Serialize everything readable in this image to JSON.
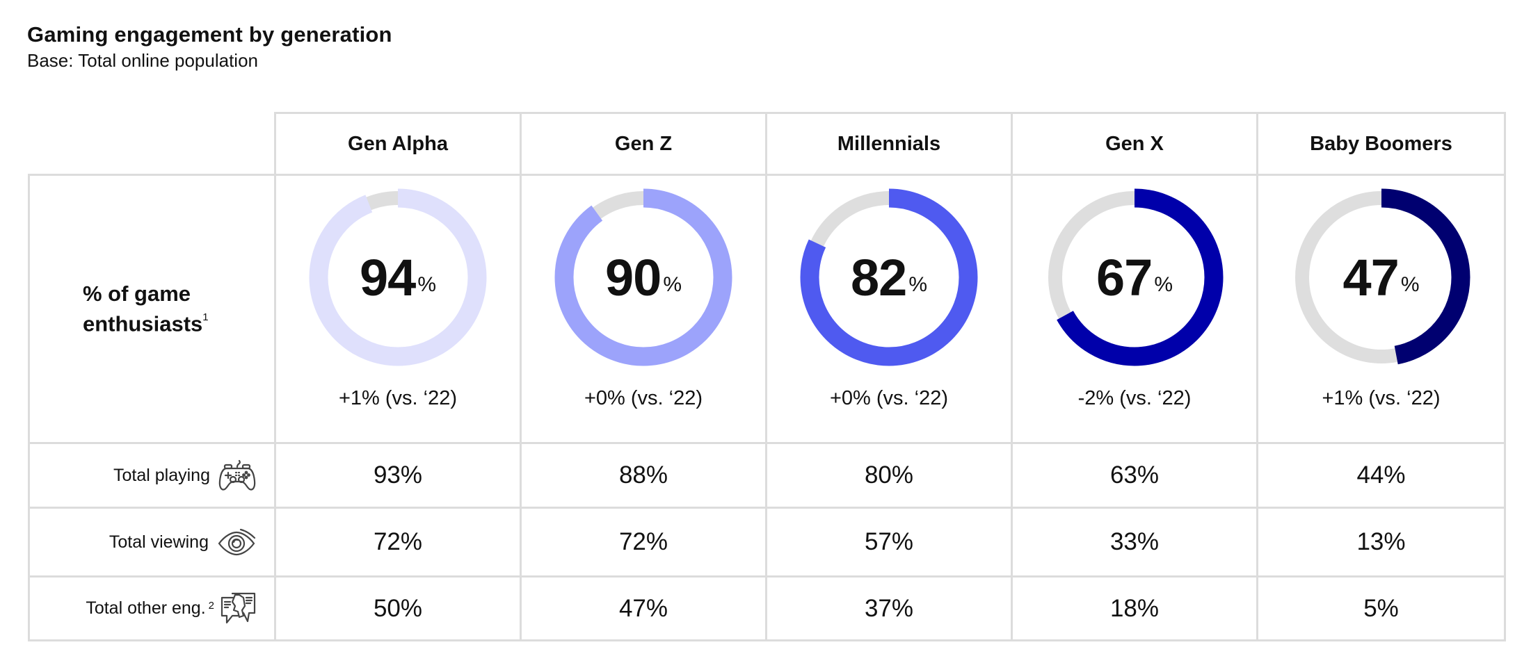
{
  "header": {
    "title": "Gaming engagement by generation",
    "subtitle": "Base: Total online population"
  },
  "columns": [
    "Gen Alpha",
    "Gen Z",
    "Millennials",
    "Gen X",
    "Baby Boomers"
  ],
  "enthusiasts": {
    "label_line1": "% of game",
    "label_line2": "enthusiasts",
    "footnote": "1",
    "values": [
      "94",
      "90",
      "82",
      "67",
      "47"
    ],
    "percent_sign": "%",
    "deltas": [
      "+1% (vs. ‘22)",
      "+0% (vs. ‘22)",
      "+0% (vs. ‘22)",
      "-2% (vs. ‘22)",
      "+1% (vs. ‘22)"
    ],
    "colors": [
      "#dfe0fc",
      "#9ca3fb",
      "#4f5af0",
      "#0000aa",
      "#000070"
    ],
    "track_color": "#dedede"
  },
  "rows": [
    {
      "label": "Total playing",
      "footnote": "",
      "icon": "game-controller-icon",
      "values": [
        "93%",
        "88%",
        "80%",
        "63%",
        "44%"
      ]
    },
    {
      "label": "Total viewing",
      "footnote": "",
      "icon": "eye-icon",
      "values": [
        "72%",
        "72%",
        "57%",
        "33%",
        "13%"
      ]
    },
    {
      "label": "Total other eng.",
      "footnote": "2",
      "icon": "conversation-icon",
      "values": [
        "50%",
        "47%",
        "37%",
        "18%",
        "5%"
      ]
    }
  ],
  "chart_data": {
    "type": "table",
    "title": "Gaming engagement by generation",
    "subtitle": "Base: Total online population",
    "categories": [
      "Gen Alpha",
      "Gen Z",
      "Millennials",
      "Gen X",
      "Baby Boomers"
    ],
    "series": [
      {
        "name": "% of game enthusiasts",
        "chart": "donut",
        "values": [
          94,
          90,
          82,
          67,
          47
        ],
        "change_vs_2022": [
          1,
          0,
          0,
          -2,
          1
        ]
      },
      {
        "name": "Total playing",
        "values": [
          93,
          88,
          80,
          63,
          44
        ]
      },
      {
        "name": "Total viewing",
        "values": [
          72,
          72,
          57,
          33,
          13
        ]
      },
      {
        "name": "Total other eng.",
        "values": [
          50,
          47,
          37,
          18,
          5
        ]
      }
    ],
    "units": "%",
    "footnotes": [
      "1",
      "2"
    ]
  }
}
